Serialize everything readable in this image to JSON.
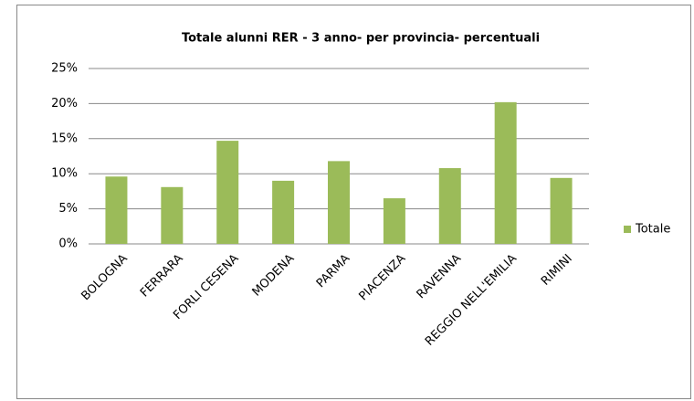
{
  "chart_data": {
    "type": "bar",
    "title": "Totale alunni RER - 3 anno- per provincia- percentuali",
    "categories": [
      "BOLOGNA",
      "FERRARA",
      "FORLI CESENA",
      "MODENA",
      "PARMA",
      "PIACENZA",
      "RAVENNA",
      "REGGIO NELL'EMILIA",
      "RIMINI"
    ],
    "series": [
      {
        "name": "Totale",
        "color": "#9bbb59",
        "values": [
          9.6,
          8.1,
          14.7,
          9.0,
          11.8,
          6.5,
          10.8,
          20.2,
          9.4
        ]
      }
    ],
    "ylim": [
      0,
      25
    ],
    "yticks": [
      {
        "value": 0,
        "label": "0%"
      },
      {
        "value": 5,
        "label": "5%"
      },
      {
        "value": 10,
        "label": "10%"
      },
      {
        "value": 15,
        "label": "15%"
      },
      {
        "value": 20,
        "label": "20%"
      },
      {
        "value": 25,
        "label": "25%"
      }
    ],
    "grid": true,
    "legend": "right"
  }
}
